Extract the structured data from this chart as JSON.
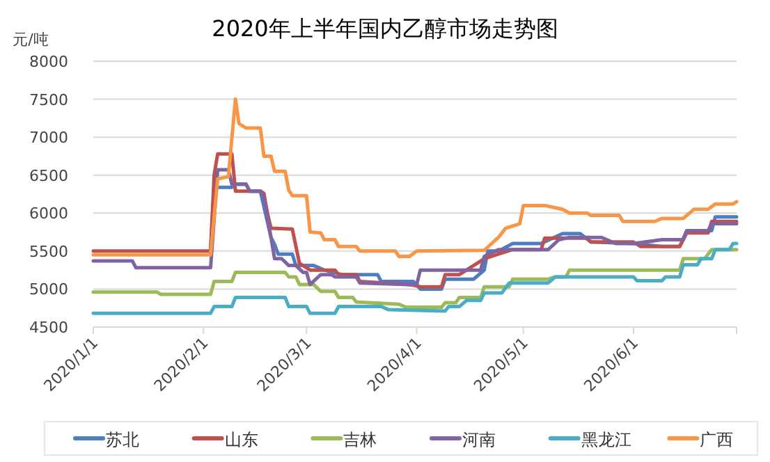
{
  "chart_data": {
    "type": "line",
    "title": "2020年上半年国内乙醇市场走势图",
    "ylabel": "元/吨",
    "ylim": [
      4500,
      8000
    ],
    "yticks": [
      4500,
      5000,
      5500,
      6000,
      6500,
      7000,
      7500,
      8000
    ],
    "xlim": [
      "2020-01-01",
      "2020-06-30"
    ],
    "xticks": [
      {
        "value": "2020-01-01",
        "label": "2020/1/1"
      },
      {
        "value": "2020-02-01",
        "label": "2020/2/1"
      },
      {
        "value": "2020-03-01",
        "label": "2020/3/1"
      },
      {
        "value": "2020-04-01",
        "label": "2020/4/1"
      },
      {
        "value": "2020-05-01",
        "label": "2020/5/1"
      },
      {
        "value": "2020-06-01",
        "label": "2020/6/1"
      }
    ],
    "grid": "y",
    "legend": "bottom",
    "series": [
      {
        "name": "苏北",
        "color": "#4f7ec0",
        "x": [
          "2020-02-03",
          "2020-02-04",
          "2020-02-09",
          "2020-02-10",
          "2020-02-13",
          "2020-02-14",
          "2020-02-17",
          "2020-02-20",
          "2020-02-21",
          "2020-02-22",
          "2020-02-26",
          "2020-02-27",
          "2020-03-03",
          "2020-03-06",
          "2020-03-11",
          "2020-03-21",
          "2020-03-22",
          "2020-03-31",
          "2020-04-01",
          "2020-04-02",
          "2020-04-08",
          "2020-04-09",
          "2020-04-17",
          "2020-04-20",
          "2020-04-21",
          "2020-04-24",
          "2020-04-28",
          "2020-05-06",
          "2020-05-12",
          "2020-05-17",
          "2020-05-20",
          "2020-06-01",
          "2020-06-09",
          "2020-06-14",
          "2020-06-16",
          "2020-06-23",
          "2020-06-24",
          "2020-06-30"
        ],
        "values": [
          5500,
          6340,
          6340,
          6380,
          6380,
          6290,
          6290,
          5680,
          5590,
          5460,
          5460,
          5310,
          5310,
          5250,
          5190,
          5190,
          5100,
          5100,
          5060,
          5000,
          5000,
          5130,
          5130,
          5250,
          5500,
          5500,
          5600,
          5600,
          5730,
          5730,
          5620,
          5600,
          5560,
          5560,
          5770,
          5770,
          5950,
          5950
        ]
      },
      {
        "name": "山东",
        "color": "#c0504d",
        "x": [
          "2020-01-01",
          "2020-02-03",
          "2020-02-04",
          "2020-02-05",
          "2020-02-09",
          "2020-02-10",
          "2020-02-17",
          "2020-02-18",
          "2020-02-19",
          "2020-02-20",
          "2020-02-26",
          "2020-02-28",
          "2020-03-02",
          "2020-03-09",
          "2020-03-10",
          "2020-03-15",
          "2020-03-16",
          "2020-03-30",
          "2020-04-02",
          "2020-04-08",
          "2020-04-09",
          "2020-04-13",
          "2020-04-17",
          "2020-04-20",
          "2020-04-24",
          "2020-04-28",
          "2020-05-06",
          "2020-05-07",
          "2020-05-19",
          "2020-05-20",
          "2020-06-01",
          "2020-06-03",
          "2020-06-14",
          "2020-06-16",
          "2020-06-22",
          "2020-06-23",
          "2020-06-30"
        ],
        "values": [
          5500,
          5500,
          6500,
          6780,
          6780,
          6290,
          6290,
          6260,
          6000,
          5800,
          5790,
          5340,
          5250,
          5250,
          5190,
          5190,
          5100,
          5060,
          5030,
          5030,
          5190,
          5190,
          5310,
          5400,
          5460,
          5520,
          5520,
          5670,
          5670,
          5620,
          5620,
          5560,
          5560,
          5740,
          5740,
          5890,
          5890
        ]
      },
      {
        "name": "吉林",
        "color": "#9bbb59",
        "x": [
          "2020-01-01",
          "2020-01-19",
          "2020-01-20",
          "2020-02-03",
          "2020-02-04",
          "2020-02-09",
          "2020-02-10",
          "2020-02-24",
          "2020-02-25",
          "2020-02-27",
          "2020-02-28",
          "2020-03-03",
          "2020-03-05",
          "2020-03-09",
          "2020-03-10",
          "2020-03-14",
          "2020-03-15",
          "2020-03-27",
          "2020-03-29",
          "2020-04-08",
          "2020-04-09",
          "2020-04-12",
          "2020-04-13",
          "2020-04-19",
          "2020-04-20",
          "2020-04-27",
          "2020-04-28",
          "2020-05-08",
          "2020-05-10",
          "2020-05-13",
          "2020-05-14",
          "2020-06-14",
          "2020-06-15",
          "2020-06-21",
          "2020-06-23",
          "2020-06-30"
        ],
        "values": [
          4960,
          4960,
          4930,
          4930,
          5100,
          5100,
          5220,
          5220,
          5160,
          5160,
          5060,
          5060,
          4970,
          4970,
          4890,
          4890,
          4830,
          4800,
          4760,
          4760,
          4820,
          4820,
          4890,
          4890,
          5030,
          5030,
          5130,
          5130,
          5160,
          5160,
          5250,
          5250,
          5400,
          5400,
          5520,
          5520
        ]
      },
      {
        "name": "河南",
        "color": "#8064a2",
        "x": [
          "2020-01-01",
          "2020-01-12",
          "2020-01-13",
          "2020-02-03",
          "2020-02-05",
          "2020-02-08",
          "2020-02-09",
          "2020-02-13",
          "2020-02-14",
          "2020-02-17",
          "2020-02-18",
          "2020-02-20",
          "2020-02-21",
          "2020-02-23",
          "2020-02-25",
          "2020-02-27",
          "2020-02-29",
          "2020-03-01",
          "2020-03-02",
          "2020-03-05",
          "2020-03-08",
          "2020-03-09",
          "2020-03-15",
          "2020-03-16",
          "2020-03-30",
          "2020-04-01",
          "2020-04-02",
          "2020-04-19",
          "2020-04-20",
          "2020-04-24",
          "2020-05-08",
          "2020-05-11",
          "2020-05-14",
          "2020-05-23",
          "2020-05-27",
          "2020-06-01",
          "2020-06-09",
          "2020-06-15",
          "2020-06-16",
          "2020-06-22",
          "2020-06-23",
          "2020-06-30"
        ],
        "values": [
          5370,
          5370,
          5280,
          5280,
          6570,
          6570,
          6380,
          6380,
          6290,
          6290,
          6200,
          5680,
          5400,
          5400,
          5310,
          5310,
          5220,
          5220,
          5060,
          5190,
          5190,
          5160,
          5160,
          5080,
          5060,
          5060,
          5250,
          5250,
          5430,
          5520,
          5520,
          5650,
          5680,
          5680,
          5600,
          5600,
          5650,
          5650,
          5770,
          5770,
          5860,
          5860
        ]
      },
      {
        "name": "黑龙江",
        "color": "#4bacc6",
        "x": [
          "2020-01-01",
          "2020-02-03",
          "2020-02-04",
          "2020-02-09",
          "2020-02-10",
          "2020-02-24",
          "2020-02-25",
          "2020-03-01",
          "2020-03-02",
          "2020-03-09",
          "2020-03-10",
          "2020-03-22",
          "2020-03-24",
          "2020-04-09",
          "2020-04-10",
          "2020-04-13",
          "2020-04-15",
          "2020-04-19",
          "2020-04-20",
          "2020-04-25",
          "2020-04-27",
          "2020-05-08",
          "2020-05-10",
          "2020-06-01",
          "2020-06-02",
          "2020-06-09",
          "2020-06-10",
          "2020-06-14",
          "2020-06-15",
          "2020-06-19",
          "2020-06-20",
          "2020-06-23",
          "2020-06-24",
          "2020-06-28",
          "2020-06-29",
          "2020-06-30"
        ],
        "values": [
          4680,
          4680,
          4770,
          4770,
          4890,
          4890,
          4770,
          4770,
          4680,
          4680,
          4770,
          4770,
          4730,
          4710,
          4770,
          4770,
          4850,
          4850,
          4950,
          4950,
          5080,
          5080,
          5160,
          5160,
          5110,
          5110,
          5160,
          5160,
          5320,
          5320,
          5400,
          5400,
          5520,
          5520,
          5600,
          5600
        ]
      },
      {
        "name": "广西",
        "color": "#f79646",
        "x": [
          "2020-01-01",
          "2020-02-03",
          "2020-02-05",
          "2020-02-08",
          "2020-02-10",
          "2020-02-11",
          "2020-02-13",
          "2020-02-17",
          "2020-02-18",
          "2020-02-20",
          "2020-02-21",
          "2020-02-24",
          "2020-02-25",
          "2020-02-26",
          "2020-03-01",
          "2020-03-02",
          "2020-03-05",
          "2020-03-06",
          "2020-03-09",
          "2020-03-10",
          "2020-03-15",
          "2020-03-16",
          "2020-03-26",
          "2020-03-27",
          "2020-03-30",
          "2020-04-01",
          "2020-04-20",
          "2020-04-24",
          "2020-04-26",
          "2020-04-30",
          "2020-05-01",
          "2020-05-07",
          "2020-05-12",
          "2020-05-14",
          "2020-05-19",
          "2020-05-20",
          "2020-05-28",
          "2020-05-29",
          "2020-06-07",
          "2020-06-09",
          "2020-06-15",
          "2020-06-18",
          "2020-06-22",
          "2020-06-24",
          "2020-06-29",
          "2020-06-30"
        ],
        "values": [
          5450,
          5450,
          6450,
          6480,
          7500,
          7180,
          7120,
          7120,
          6750,
          6750,
          6550,
          6550,
          6300,
          6230,
          6230,
          5750,
          5740,
          5650,
          5650,
          5560,
          5560,
          5500,
          5500,
          5430,
          5430,
          5500,
          5510,
          5680,
          5800,
          5860,
          6100,
          6100,
          6050,
          6000,
          6000,
          5970,
          5970,
          5890,
          5890,
          5930,
          5930,
          6050,
          6050,
          6120,
          6120,
          6150
        ]
      }
    ]
  }
}
